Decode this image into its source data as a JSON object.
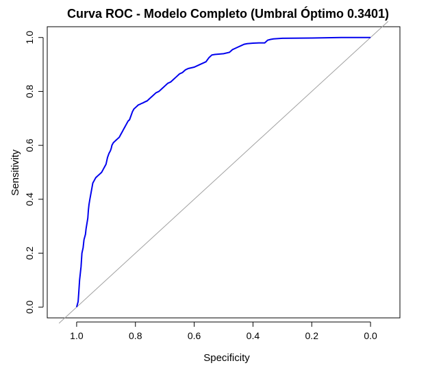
{
  "chart_data": {
    "type": "line",
    "title": "Curva ROC - Modelo Completo (Umbral Óptimo 0.3401)",
    "xlabel": "Specificity",
    "ylabel": "Sensitivity",
    "xlim": [
      1.1,
      -0.1
    ],
    "ylim": [
      -0.04,
      1.04
    ],
    "x_ticks": [
      "1.0",
      "0.8",
      "0.6",
      "0.4",
      "0.2",
      "0.0"
    ],
    "y_ticks": [
      "0.0",
      "0.2",
      "0.4",
      "0.6",
      "0.8",
      "1.0"
    ],
    "reference_line": {
      "from": [
        1.0,
        0.0
      ],
      "to": [
        0.0,
        1.0
      ],
      "color": "#a0a0a0"
    },
    "series": [
      {
        "color": "#0000ee",
        "x": [
          1.0,
          0.995,
          0.993,
          0.99,
          0.985,
          0.982,
          0.978,
          0.975,
          0.97,
          0.968,
          0.965,
          0.962,
          0.96,
          0.958,
          0.955,
          0.95,
          0.945,
          0.94,
          0.935,
          0.93,
          0.925,
          0.92,
          0.915,
          0.91,
          0.905,
          0.9,
          0.897,
          0.895,
          0.89,
          0.885,
          0.882,
          0.88,
          0.875,
          0.87,
          0.865,
          0.86,
          0.855,
          0.85,
          0.845,
          0.84,
          0.835,
          0.83,
          0.825,
          0.82,
          0.815,
          0.81,
          0.805,
          0.8,
          0.795,
          0.79,
          0.785,
          0.78,
          0.775,
          0.77,
          0.76,
          0.75,
          0.74,
          0.73,
          0.72,
          0.71,
          0.7,
          0.69,
          0.68,
          0.67,
          0.66,
          0.65,
          0.64,
          0.63,
          0.62,
          0.6,
          0.58,
          0.56,
          0.55,
          0.54,
          0.53,
          0.5,
          0.48,
          0.47,
          0.46,
          0.45,
          0.44,
          0.43,
          0.42,
          0.41,
          0.4,
          0.38,
          0.36,
          0.35,
          0.34,
          0.33,
          0.3,
          0.2,
          0.1,
          0.05,
          0.0
        ],
        "y": [
          0.0,
          0.02,
          0.05,
          0.1,
          0.15,
          0.2,
          0.22,
          0.25,
          0.27,
          0.29,
          0.31,
          0.33,
          0.36,
          0.38,
          0.4,
          0.43,
          0.46,
          0.47,
          0.48,
          0.485,
          0.49,
          0.495,
          0.5,
          0.51,
          0.52,
          0.53,
          0.545,
          0.555,
          0.57,
          0.58,
          0.59,
          0.6,
          0.61,
          0.615,
          0.62,
          0.625,
          0.63,
          0.64,
          0.65,
          0.66,
          0.67,
          0.68,
          0.69,
          0.695,
          0.71,
          0.725,
          0.735,
          0.74,
          0.745,
          0.75,
          0.752,
          0.755,
          0.757,
          0.76,
          0.765,
          0.775,
          0.785,
          0.795,
          0.8,
          0.81,
          0.82,
          0.83,
          0.835,
          0.845,
          0.855,
          0.865,
          0.87,
          0.88,
          0.885,
          0.89,
          0.9,
          0.91,
          0.925,
          0.935,
          0.937,
          0.94,
          0.945,
          0.955,
          0.96,
          0.965,
          0.97,
          0.975,
          0.977,
          0.978,
          0.979,
          0.98,
          0.98,
          0.99,
          0.993,
          0.995,
          0.997,
          0.998,
          1.0,
          1.0,
          1.0
        ]
      }
    ],
    "grid": false
  }
}
